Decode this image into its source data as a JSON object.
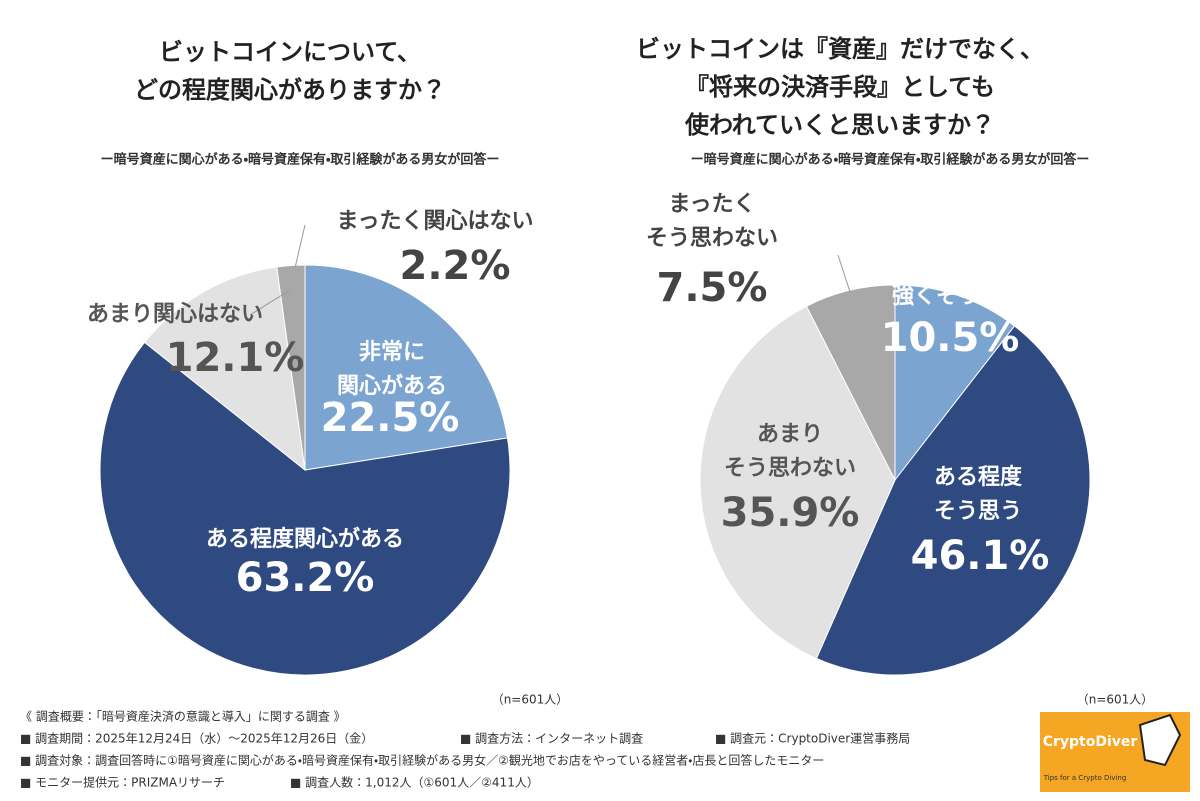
{
  "chart_data": [
    {
      "type": "pie",
      "title": "ビットコインについて、\nどの程度関心がありますか？",
      "subtitle": "ー暗号資産に関心がある・暗号資産保有・取引経験がある男女が回答ー",
      "categories": [
        "非常に\n関心がある",
        "ある程度関心がある",
        "あまり関心はない",
        "まったく関心はない"
      ],
      "values": [
        22.5,
        63.2,
        12.1,
        2.2
      ],
      "value_labels": [
        "22.5%",
        "63.2%",
        "12.1%",
        "2.2%"
      ],
      "colors": [
        "#7ba4d0",
        "#2e4a80",
        "#e2e2e2",
        "#a8a8a8"
      ],
      "note": "（n=601人）"
    },
    {
      "type": "pie",
      "title": "ビットコインは『資産』だけでなく、\n『将来の決済手段』としても\n使われていくと思いますか？",
      "subtitle": "ー暗号資産に関心がある・暗号資産保有・取引経験がある男女が回答ー",
      "categories": [
        "強くそう思う",
        "ある程度\nそう思う",
        "あまり\nそう思わない",
        "まったく\nそう思わない"
      ],
      "values": [
        10.5,
        46.1,
        35.9,
        7.5
      ],
      "value_labels": [
        "10.5%",
        "46.1%",
        "35.9%",
        "7.5%"
      ],
      "colors": [
        "#7ba4d0",
        "#2e4a80",
        "#e2e2e2",
        "#a8a8a8"
      ],
      "note": "（n=601人）"
    }
  ],
  "footer": [
    [
      "《 調査概要：「暗号資産決済の意識と導入」に関する調査 》"
    ],
    [
      "■ 調査期間：2025年12月24日（水）〜2025年12月26日（金）",
      "■ 調査方法：インターネット調査",
      "■ 調査元：CryptoDiver運営事務局"
    ],
    [
      "■ 調査対象：調査回答時に①暗号資産に関心がある・暗号資産保有・取引経験がある男女／②観光地でお店をやっている経営者・店長と回答したモニター"
    ],
    [
      "■ モニター提供元：PRIZMAリサーチ",
      "■ 調査人数：1,012人（①601人／②411人）"
    ]
  ],
  "logo": {
    "name": "CryptoDiver",
    "tagline": "Tips for a Crypto Diving"
  }
}
